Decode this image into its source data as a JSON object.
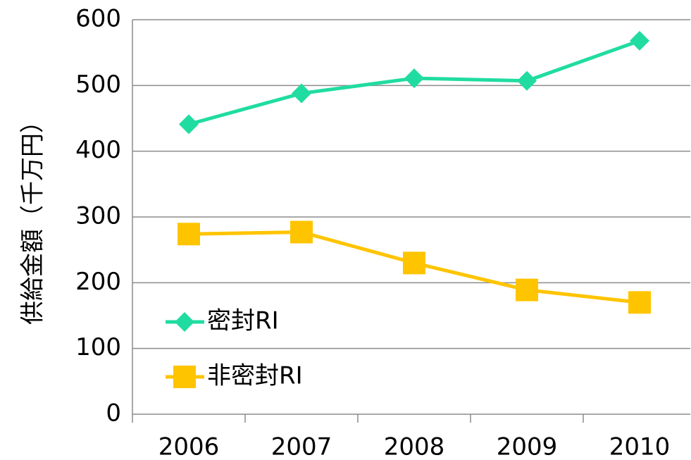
{
  "chart_data": {
    "type": "line",
    "y_label": "供給金額（千万円）",
    "categories": [
      "2006",
      "2007",
      "2008",
      "2009",
      "2010"
    ],
    "series": [
      {
        "name": "密封RI",
        "color": "#20dca0",
        "marker": "diamond",
        "values": [
          441,
          488,
          511,
          507,
          568
        ]
      },
      {
        "name": "非密封RI",
        "color": "#ffc400",
        "marker": "square",
        "values": [
          274,
          277,
          230,
          189,
          170
        ]
      }
    ],
    "ylim": [
      0,
      600
    ],
    "yticks": [
      0,
      100,
      200,
      300,
      400,
      500,
      600
    ],
    "grid": true
  }
}
